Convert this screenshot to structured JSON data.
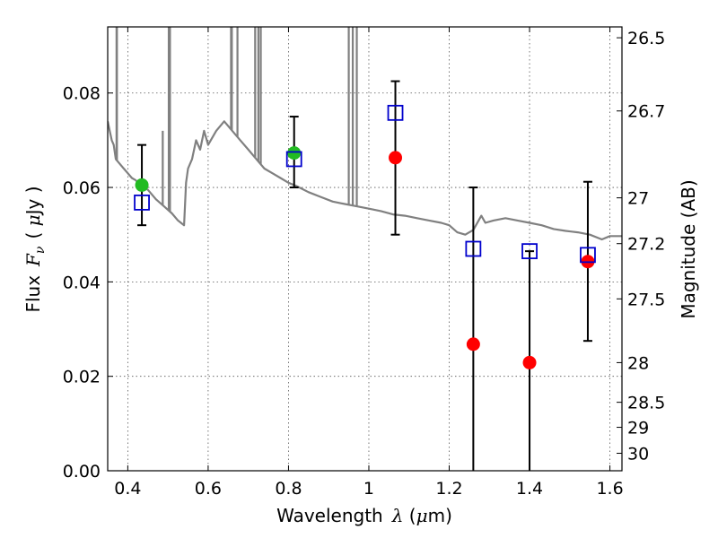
{
  "chart_data": {
    "type": "scatter",
    "xlabel": {
      "prefix": "Wavelength",
      "symbol": "λ",
      "unit_open": " (",
      "unit_mu": "μ",
      "unit_rest": "m)"
    },
    "ylabel": {
      "prefix": "Flux",
      "symbol": "F",
      "sub": "ν",
      "unit_open": "( ",
      "unit_mu": "μ",
      "unit_rest": "Jy )"
    },
    "y2label": "Magnitude (AB)",
    "xlim": [
      0.35,
      1.63
    ],
    "ylim": [
      0.0,
      0.094
    ],
    "grid": true,
    "x_ticks": [
      {
        "value": 0.4,
        "label": "0.4"
      },
      {
        "value": 0.6,
        "label": "0.6"
      },
      {
        "value": 0.8,
        "label": "0.8"
      },
      {
        "value": 1.0,
        "label": "1"
      },
      {
        "value": 1.2,
        "label": "1.2"
      },
      {
        "value": 1.4,
        "label": "1.4"
      },
      {
        "value": 1.6,
        "label": "1.6"
      }
    ],
    "y_ticks": [
      {
        "value": 0.0,
        "label": "0.00"
      },
      {
        "value": 0.02,
        "label": "0.02"
      },
      {
        "value": 0.04,
        "label": "0.04"
      },
      {
        "value": 0.06,
        "label": "0.06"
      },
      {
        "value": 0.08,
        "label": "0.08"
      }
    ],
    "mag_ticks": [
      {
        "flux": 0.0917,
        "label": "26.5"
      },
      {
        "flux": 0.0762,
        "label": "26.7"
      },
      {
        "flux": 0.0578,
        "label": "27"
      },
      {
        "flux": 0.0481,
        "label": "27.2"
      },
      {
        "flux": 0.0364,
        "label": "27.5"
      },
      {
        "flux": 0.0229,
        "label": "28"
      },
      {
        "flux": 0.0145,
        "label": "28.5"
      },
      {
        "flux": 0.0092,
        "label": "29"
      },
      {
        "flux": 0.0037,
        "label": "30"
      }
    ],
    "colors": {
      "model": "#808080",
      "observed": "#ff0000",
      "observed_alt": "#22bb22",
      "synthetic": "#0000cc",
      "errorbar": "#000000"
    },
    "series": [
      {
        "kind": "model_spectrum",
        "points": [
          [
            0.35,
            0.074
          ],
          [
            0.36,
            0.07
          ],
          [
            0.365,
            0.069
          ],
          [
            0.37,
            0.066
          ],
          [
            0.38,
            0.065
          ],
          [
            0.39,
            0.064
          ],
          [
            0.4,
            0.063
          ],
          [
            0.41,
            0.062
          ],
          [
            0.42,
            0.0615
          ],
          [
            0.43,
            0.0605
          ],
          [
            0.45,
            0.0595
          ],
          [
            0.47,
            0.0575
          ],
          [
            0.49,
            0.056
          ],
          [
            0.51,
            0.0545
          ],
          [
            0.525,
            0.053
          ],
          [
            0.54,
            0.052
          ],
          [
            0.545,
            0.061
          ],
          [
            0.55,
            0.064
          ],
          [
            0.56,
            0.066
          ],
          [
            0.57,
            0.07
          ],
          [
            0.58,
            0.068
          ],
          [
            0.59,
            0.072
          ],
          [
            0.6,
            0.069
          ],
          [
            0.62,
            0.072
          ],
          [
            0.64,
            0.074
          ],
          [
            0.66,
            0.072
          ],
          [
            0.68,
            0.07
          ],
          [
            0.7,
            0.068
          ],
          [
            0.72,
            0.066
          ],
          [
            0.74,
            0.064
          ],
          [
            0.76,
            0.063
          ],
          [
            0.78,
            0.062
          ],
          [
            0.8,
            0.061
          ],
          [
            0.82,
            0.0603
          ],
          [
            0.85,
            0.059
          ],
          [
            0.88,
            0.058
          ],
          [
            0.91,
            0.057
          ],
          [
            0.94,
            0.0565
          ],
          [
            0.97,
            0.056
          ],
          [
            1.0,
            0.0555
          ],
          [
            1.03,
            0.055
          ],
          [
            1.06,
            0.0543
          ],
          [
            1.09,
            0.054
          ],
          [
            1.12,
            0.0535
          ],
          [
            1.15,
            0.053
          ],
          [
            1.18,
            0.0525
          ],
          [
            1.2,
            0.052
          ],
          [
            1.22,
            0.0505
          ],
          [
            1.24,
            0.05
          ],
          [
            1.26,
            0.051
          ],
          [
            1.28,
            0.054
          ],
          [
            1.29,
            0.0525
          ],
          [
            1.31,
            0.053
          ],
          [
            1.34,
            0.0535
          ],
          [
            1.37,
            0.053
          ],
          [
            1.4,
            0.0525
          ],
          [
            1.43,
            0.052
          ],
          [
            1.46,
            0.0512
          ],
          [
            1.49,
            0.0508
          ],
          [
            1.52,
            0.0505
          ],
          [
            1.55,
            0.05
          ],
          [
            1.58,
            0.049
          ],
          [
            1.6,
            0.0497
          ],
          [
            1.63,
            0.0497
          ]
        ],
        "emission_lines": [
          [
            0.372,
            0.094
          ],
          [
            0.373,
            0.094
          ],
          [
            0.502,
            0.094
          ],
          [
            0.505,
            0.094
          ],
          [
            0.487,
            0.072
          ],
          [
            0.657,
            0.094
          ],
          [
            0.659,
            0.094
          ],
          [
            0.673,
            0.094
          ],
          [
            0.717,
            0.094
          ],
          [
            0.725,
            0.094
          ],
          [
            0.731,
            0.094
          ],
          [
            0.95,
            0.094
          ],
          [
            0.96,
            0.094
          ],
          [
            0.97,
            0.094
          ]
        ]
      },
      {
        "kind": "synthetic_photometry",
        "marker": "open_square",
        "points": [
          {
            "x": 0.435,
            "y": 0.0568
          },
          {
            "x": 0.814,
            "y": 0.066
          },
          {
            "x": 1.066,
            "y": 0.0758
          },
          {
            "x": 1.26,
            "y": 0.047
          },
          {
            "x": 1.4,
            "y": 0.0465
          },
          {
            "x": 1.545,
            "y": 0.0457
          }
        ]
      },
      {
        "kind": "observed_photometry",
        "marker": "filled_circle",
        "points": [
          {
            "x": 0.435,
            "y": 0.0605,
            "ylow": 0.052,
            "yhigh": 0.069,
            "color_key": "observed_alt"
          },
          {
            "x": 0.814,
            "y": 0.0673,
            "ylow": 0.06,
            "yhigh": 0.075,
            "color_key": "observed_alt"
          },
          {
            "x": 1.066,
            "y": 0.0663,
            "ylow": 0.05,
            "yhigh": 0.0825,
            "color_key": "observed"
          },
          {
            "x": 1.26,
            "y": 0.0268,
            "ylow": 0.0,
            "yhigh": 0.06,
            "color_key": "observed"
          },
          {
            "x": 1.4,
            "y": 0.0229,
            "ylow": 0.0,
            "yhigh": 0.0465,
            "color_key": "observed"
          },
          {
            "x": 1.545,
            "y": 0.0443,
            "ylow": 0.0275,
            "yhigh": 0.0612,
            "color_key": "observed"
          }
        ]
      }
    ]
  }
}
